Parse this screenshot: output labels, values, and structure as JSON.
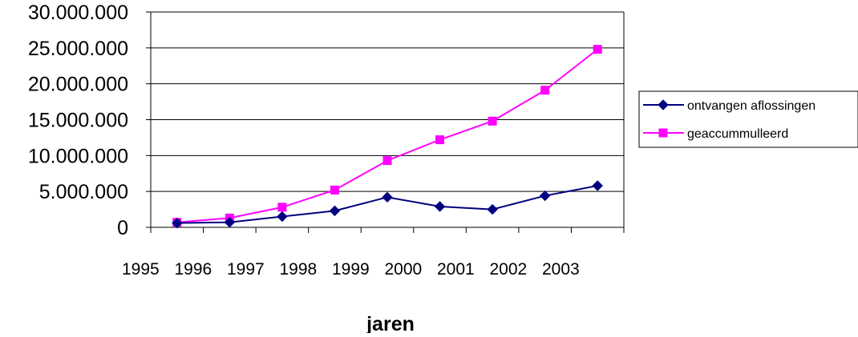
{
  "chart_data": {
    "type": "line",
    "title": "",
    "xlabel": "jaren",
    "ylabel": "",
    "categories": [
      "1995",
      "1996",
      "1997",
      "1998",
      "1999",
      "2000",
      "2001",
      "2002",
      "2003"
    ],
    "y_tick_labels": [
      "0",
      "5.000.000",
      "10.000.000",
      "15.000.000",
      "20.000.000",
      "25.000.000",
      "30.000.000"
    ],
    "ylim": [
      0,
      30000000
    ],
    "y_tick_step": 5000000,
    "grid": true,
    "legend_position": "right",
    "series": [
      {
        "name": "ontvangen aflossingen",
        "color": "#000080",
        "marker": "diamond",
        "values": [
          600000,
          700000,
          1500000,
          2300000,
          4200000,
          2900000,
          2500000,
          4400000,
          5800000
        ]
      },
      {
        "name": "geaccummulleerd",
        "color": "#ff00ff",
        "marker": "square",
        "values": [
          700000,
          1300000,
          2800000,
          5200000,
          9300000,
          12200000,
          14800000,
          19100000,
          24800000
        ]
      }
    ]
  }
}
